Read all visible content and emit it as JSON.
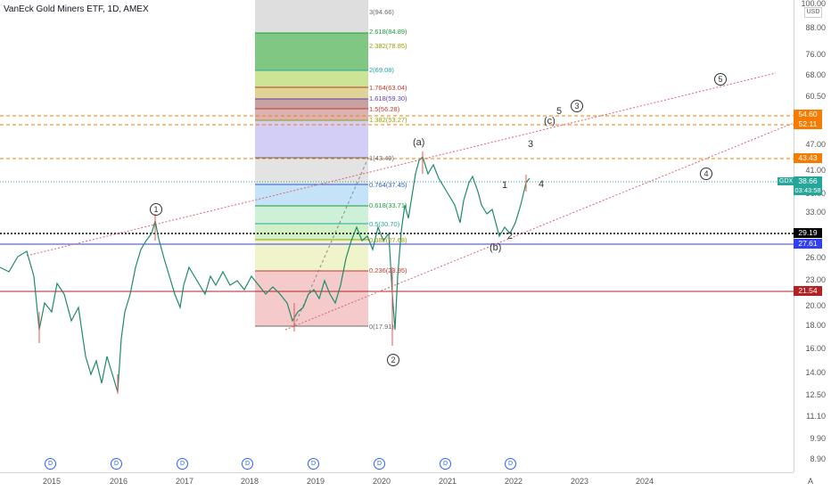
{
  "header": {
    "title": "VanEck Gold Miners ETF, 1D, AMEX"
  },
  "price_axis": {
    "currency": "USD",
    "labels": [
      "100.00",
      "88.00",
      "76.00",
      "68.00",
      "60.50",
      "54.60",
      "47.00",
      "41.00",
      "36.00",
      "33.00",
      "29.19",
      "26.00",
      "23.00",
      "21.54",
      "20.00",
      "18.00",
      "16.00",
      "14.00",
      "12.50",
      "11.10",
      "9.90",
      "8.90"
    ]
  },
  "price_badges": {
    "level_54_60": "54.60",
    "level_52_11": "52.11",
    "level_43_43": "43.43",
    "last_price": "38.66",
    "countdown": "03:43:58",
    "level_29_19": "29.19",
    "level_27_61": "27.61",
    "level_21_54": "21.54",
    "colors": {
      "orange": "#f57c00",
      "teal": "#26a69a",
      "black": "#000000",
      "blue": "#2f3ff1",
      "darkred": "#b22222"
    }
  },
  "symbol_tag": "GDX",
  "time_axis": {
    "labels": [
      "2015",
      "2016",
      "2017",
      "2018",
      "2019",
      "2020",
      "2021",
      "2022",
      "2023",
      "2024"
    ]
  },
  "auto_label": "A",
  "dividend_marker": "D",
  "fib_levels": [
    {
      "label": "3(94.66)",
      "color": "#6b6b6b"
    },
    {
      "label": "2.618(84.89)",
      "color": "#1b9e3a"
    },
    {
      "label": "2.382(78.85)",
      "color": "#9aa000"
    },
    {
      "label": "2(69.08)",
      "color": "#22a7a0"
    },
    {
      "label": "1.764(63.04)",
      "color": "#c0392b"
    },
    {
      "label": "1.618(59.30)",
      "color": "#5b3fb0"
    },
    {
      "label": "1.5(56.28)",
      "color": "#c0392b"
    },
    {
      "label": "1.382(53.27)",
      "color": "#9aa000"
    },
    {
      "label": "1(43.49)",
      "color": "#6b6b6b"
    },
    {
      "label": "0.764(37.45)",
      "color": "#2a5cc9"
    },
    {
      "label": "0.618(33.71)",
      "color": "#1b9e3a"
    },
    {
      "label": "0.5(30.70)",
      "color": "#22a7a0"
    },
    {
      "label": "0.382(27.68)",
      "color": "#9aa000"
    },
    {
      "label": "0.236(23.95)",
      "color": "#c0392b"
    },
    {
      "label": "0(17.91)",
      "color": "#6b6b6b"
    }
  ],
  "wave_labels": {
    "c1": "1",
    "c2": "2",
    "c3": "3",
    "c4": "4",
    "c5": "5",
    "a": "(a)",
    "b": "(b)",
    "c": "(c)",
    "n1": "1",
    "n2": "2",
    "n3": "3",
    "n4": "4",
    "n5": "5"
  }
}
